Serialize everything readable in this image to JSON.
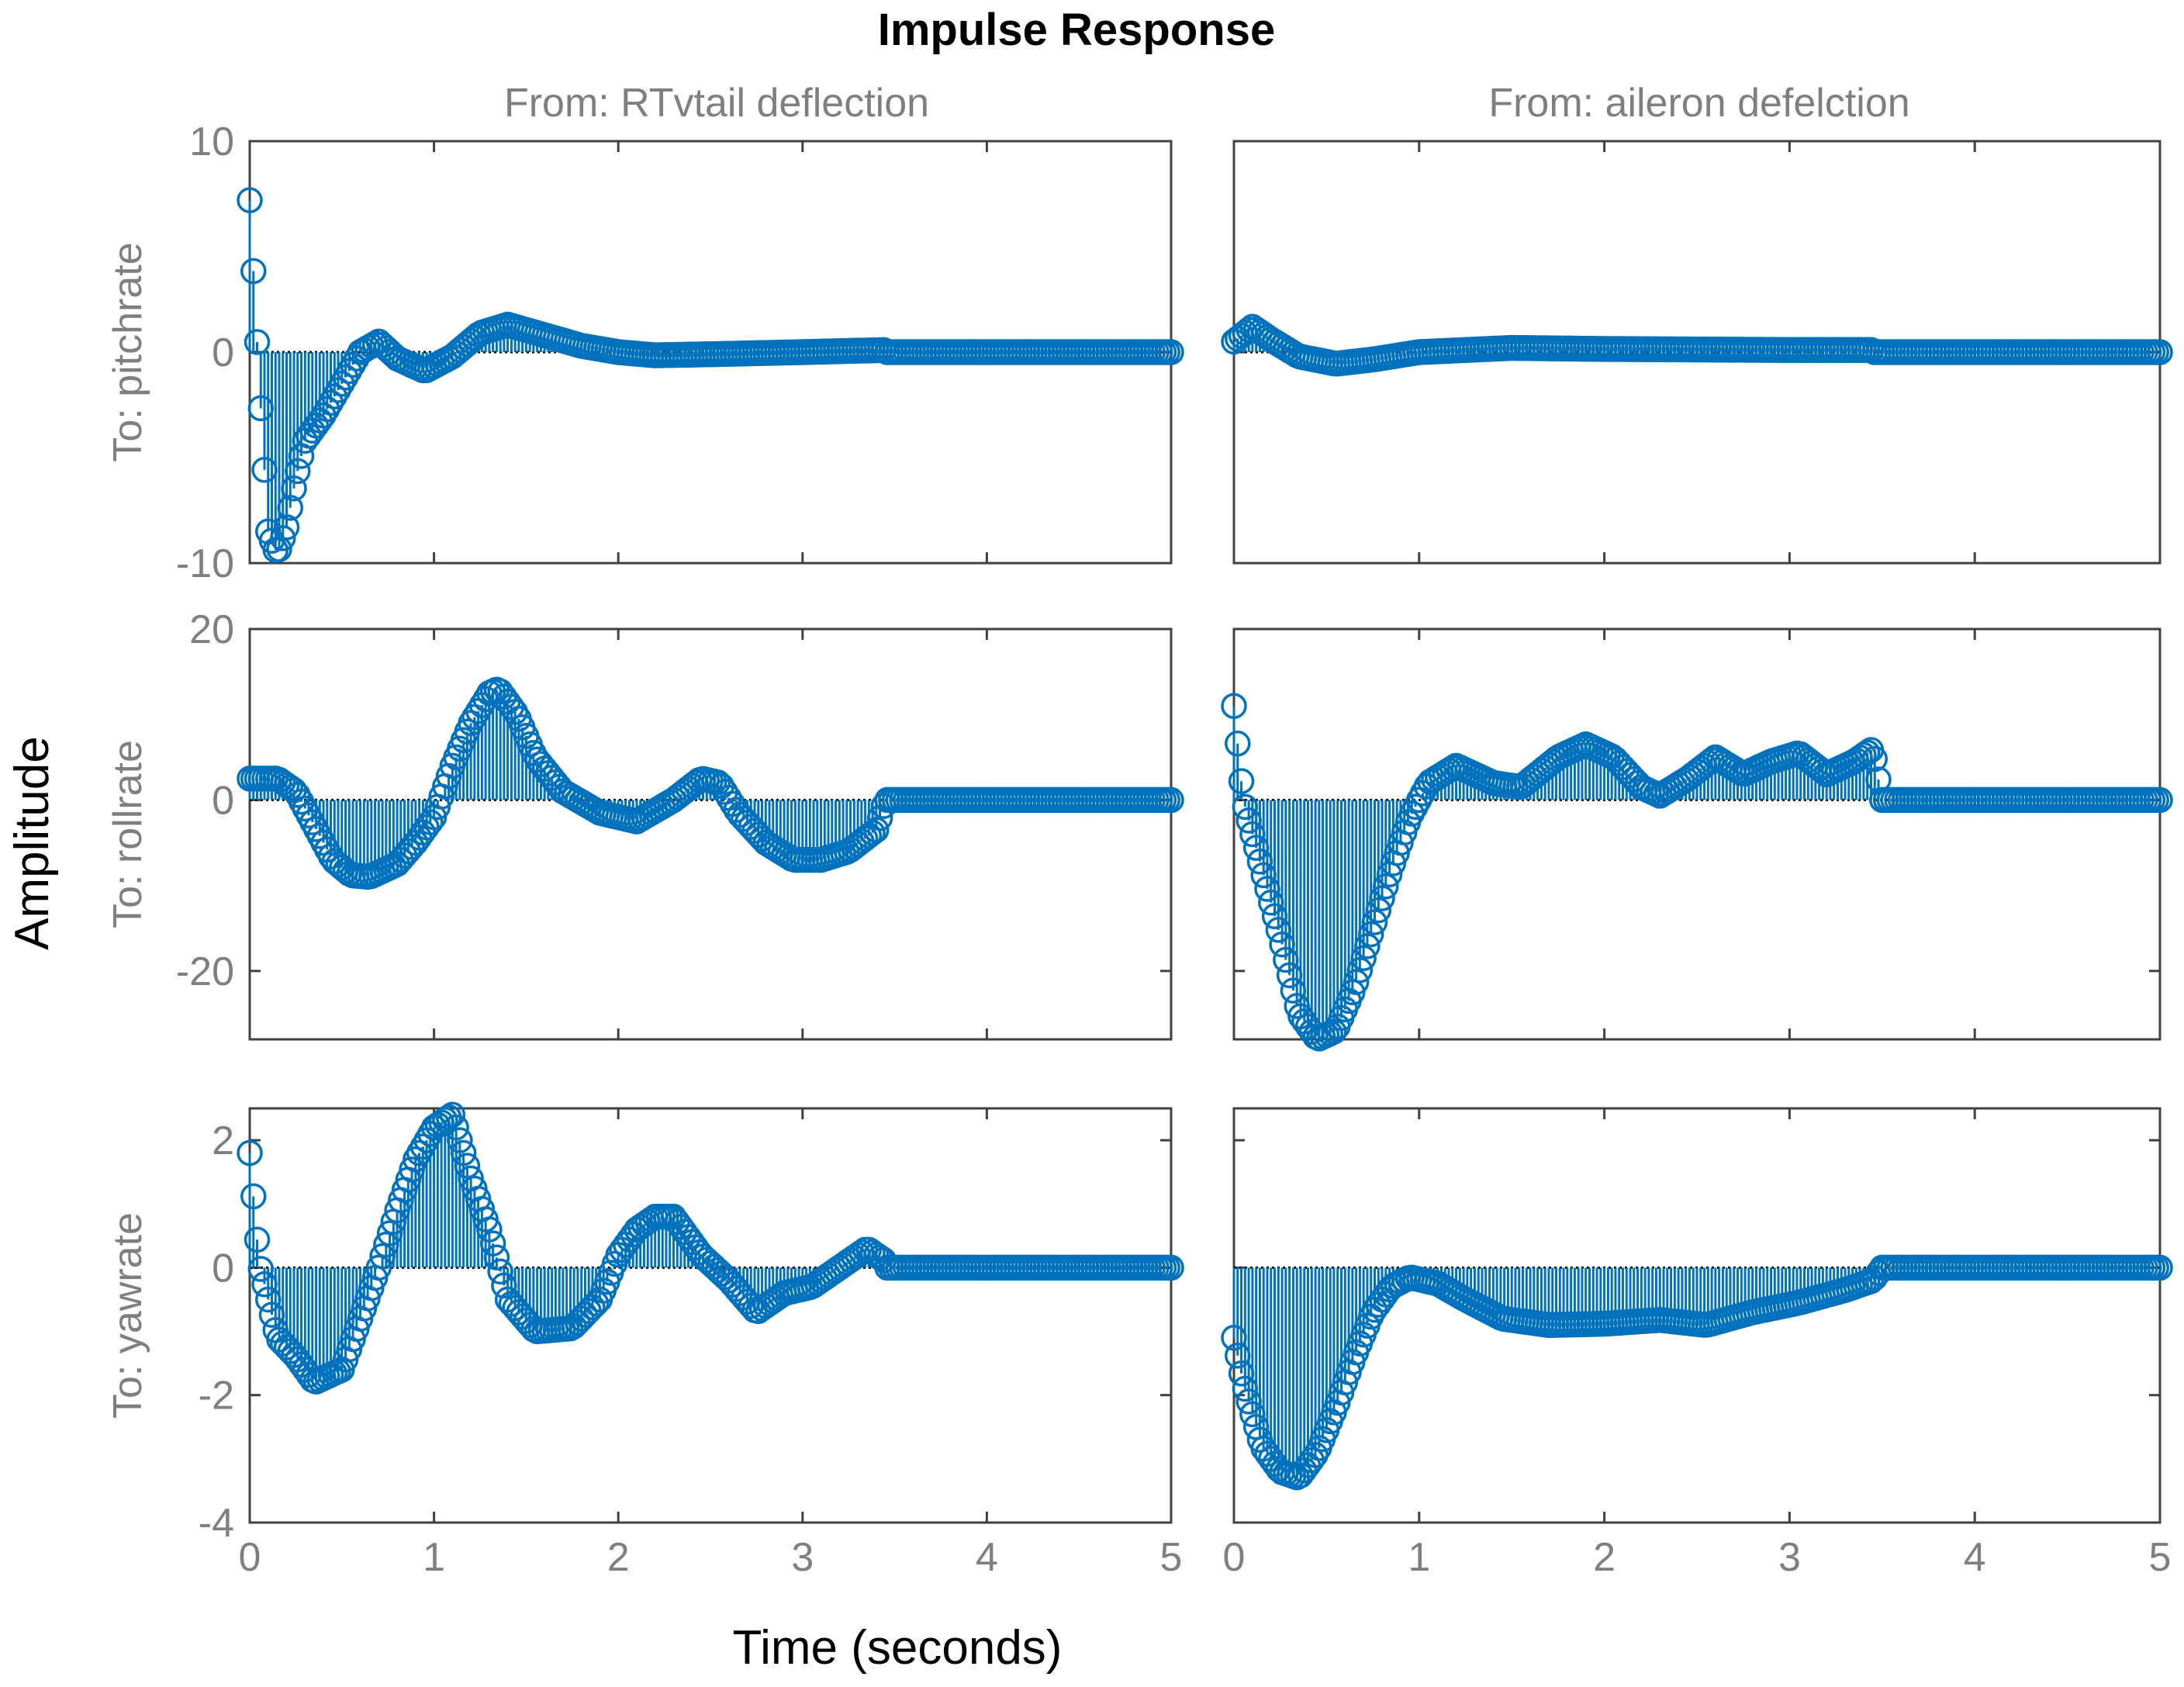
{
  "chart_data": {
    "type": "stem",
    "title": "Impulse Response",
    "xlabel": "Time (seconds)",
    "ylabel": "Amplitude",
    "series_color": "#0072BD",
    "xlim": [
      0,
      5
    ],
    "xticks": [
      0,
      1,
      2,
      3,
      4,
      5
    ],
    "inputs": [
      "From: RTvtail deflection",
      "From: aileron defelction"
    ],
    "outputs": [
      {
        "label": "To: pitchrate",
        "ylim": [
          -10,
          10
        ],
        "yticks": [
          -10,
          0,
          10
        ]
      },
      {
        "label": "To: rollrate",
        "ylim": [
          -28,
          20
        ],
        "yticks": [
          -20,
          0,
          20
        ]
      },
      {
        "label": "To: yawrate",
        "ylim": [
          -4,
          2.5
        ],
        "yticks": [
          -4,
          -2,
          0,
          2
        ]
      }
    ],
    "stop_time": 3.45,
    "panels": [
      {
        "output": "To: pitchrate",
        "input": "From: RTvtail deflection",
        "points": [
          [
            0,
            7.2
          ],
          [
            0.05,
            -1.2
          ],
          [
            0.1,
            -8.5
          ],
          [
            0.15,
            -9.6
          ],
          [
            0.2,
            -8.3
          ],
          [
            0.25,
            -6
          ],
          [
            0.3,
            -4.2
          ],
          [
            0.4,
            -3
          ],
          [
            0.5,
            -1.5
          ],
          [
            0.6,
            0
          ],
          [
            0.7,
            0.5
          ],
          [
            0.8,
            -0.3
          ],
          [
            0.95,
            -0.9
          ],
          [
            1.1,
            -0.2
          ],
          [
            1.25,
            0.9
          ],
          [
            1.4,
            1.3
          ],
          [
            1.6,
            0.8
          ],
          [
            1.8,
            0.3
          ],
          [
            2,
            0
          ],
          [
            2.2,
            -0.15
          ],
          [
            2.5,
            -0.1
          ],
          [
            3,
            0
          ],
          [
            3.45,
            0.1
          ]
        ]
      },
      {
        "output": "To: pitchrate",
        "input": "From: aileron defelction",
        "points": [
          [
            0,
            0.5
          ],
          [
            0.1,
            1.2
          ],
          [
            0.2,
            0.6
          ],
          [
            0.35,
            -0.2
          ],
          [
            0.55,
            -0.55
          ],
          [
            0.75,
            -0.35
          ],
          [
            1,
            0
          ],
          [
            1.5,
            0.2
          ],
          [
            2,
            0.15
          ],
          [
            3,
            0.1
          ],
          [
            3.45,
            0.1
          ]
        ]
      },
      {
        "output": "To: rollrate",
        "input": "From: RTvtail deflection",
        "points": [
          [
            0,
            2.5
          ],
          [
            0.15,
            2.5
          ],
          [
            0.25,
            1
          ],
          [
            0.35,
            -3
          ],
          [
            0.45,
            -7
          ],
          [
            0.55,
            -8.8
          ],
          [
            0.65,
            -9
          ],
          [
            0.8,
            -7.5
          ],
          [
            0.9,
            -5
          ],
          [
            1,
            -2
          ],
          [
            1.1,
            4
          ],
          [
            1.2,
            9
          ],
          [
            1.3,
            12.5
          ],
          [
            1.35,
            13
          ],
          [
            1.45,
            10
          ],
          [
            1.55,
            5
          ],
          [
            1.7,
            1
          ],
          [
            1.9,
            -1.5
          ],
          [
            2.1,
            -2.5
          ],
          [
            2.3,
            0
          ],
          [
            2.45,
            2.5
          ],
          [
            2.55,
            2
          ],
          [
            2.65,
            -1.5
          ],
          [
            2.8,
            -5
          ],
          [
            2.95,
            -7
          ],
          [
            3.1,
            -7
          ],
          [
            3.25,
            -6
          ],
          [
            3.4,
            -3.5
          ],
          [
            3.45,
            0
          ]
        ]
      },
      {
        "output": "To: rollrate",
        "input": "From: aileron defelction",
        "points": [
          [
            0,
            11
          ],
          [
            0.05,
            0
          ],
          [
            0.15,
            -8
          ],
          [
            0.25,
            -16
          ],
          [
            0.35,
            -25
          ],
          [
            0.45,
            -28
          ],
          [
            0.55,
            -27
          ],
          [
            0.65,
            -22
          ],
          [
            0.75,
            -15
          ],
          [
            0.85,
            -8
          ],
          [
            0.95,
            -2
          ],
          [
            1.05,
            2
          ],
          [
            1.2,
            4
          ],
          [
            1.4,
            2
          ],
          [
            1.55,
            1.5
          ],
          [
            1.75,
            5
          ],
          [
            1.9,
            6.5
          ],
          [
            2.05,
            5
          ],
          [
            2.2,
            1.5
          ],
          [
            2.3,
            0.5
          ],
          [
            2.45,
            2.5
          ],
          [
            2.6,
            5
          ],
          [
            2.75,
            3
          ],
          [
            2.9,
            4.5
          ],
          [
            3.05,
            5.5
          ],
          [
            3.2,
            3
          ],
          [
            3.35,
            4.5
          ],
          [
            3.45,
            6
          ],
          [
            3.5,
            0
          ]
        ]
      },
      {
        "output": "To: yawrate",
        "input": "From: RTvtail deflection",
        "points": [
          [
            0,
            1.8
          ],
          [
            0.05,
            0.1
          ],
          [
            0.15,
            -1.1
          ],
          [
            0.25,
            -1.4
          ],
          [
            0.35,
            -1.8
          ],
          [
            0.5,
            -1.6
          ],
          [
            0.6,
            -0.8
          ],
          [
            0.7,
            0
          ],
          [
            0.8,
            0.9
          ],
          [
            0.9,
            1.7
          ],
          [
            1,
            2.2
          ],
          [
            1.1,
            2.4
          ],
          [
            1.2,
            1.4
          ],
          [
            1.3,
            0.6
          ],
          [
            1.4,
            -0.5
          ],
          [
            1.55,
            -1
          ],
          [
            1.75,
            -0.95
          ],
          [
            1.9,
            -0.5
          ],
          [
            2,
            0.2
          ],
          [
            2.1,
            0.6
          ],
          [
            2.2,
            0.8
          ],
          [
            2.3,
            0.8
          ],
          [
            2.45,
            0.2
          ],
          [
            2.6,
            -0.2
          ],
          [
            2.75,
            -0.7
          ],
          [
            2.9,
            -0.4
          ],
          [
            3.05,
            -0.3
          ],
          [
            3.2,
            0
          ],
          [
            3.35,
            0.3
          ],
          [
            3.45,
            0.1
          ]
        ]
      },
      {
        "output": "To: yawrate",
        "input": "From: aileron defelction",
        "points": [
          [
            0,
            -1.1
          ],
          [
            0.05,
            -1.8
          ],
          [
            0.15,
            -2.8
          ],
          [
            0.25,
            -3.2
          ],
          [
            0.35,
            -3.3
          ],
          [
            0.45,
            -2.9
          ],
          [
            0.55,
            -2.2
          ],
          [
            0.65,
            -1.4
          ],
          [
            0.75,
            -0.7
          ],
          [
            0.85,
            -0.3
          ],
          [
            0.95,
            -0.15
          ],
          [
            1.1,
            -0.25
          ],
          [
            1.25,
            -0.5
          ],
          [
            1.45,
            -0.8
          ],
          [
            1.7,
            -0.9
          ],
          [
            2,
            -0.88
          ],
          [
            2.3,
            -0.82
          ],
          [
            2.55,
            -0.9
          ],
          [
            2.8,
            -0.7
          ],
          [
            3.05,
            -0.55
          ],
          [
            3.3,
            -0.35
          ],
          [
            3.45,
            -0.2
          ],
          [
            3.5,
            0
          ]
        ]
      }
    ]
  }
}
